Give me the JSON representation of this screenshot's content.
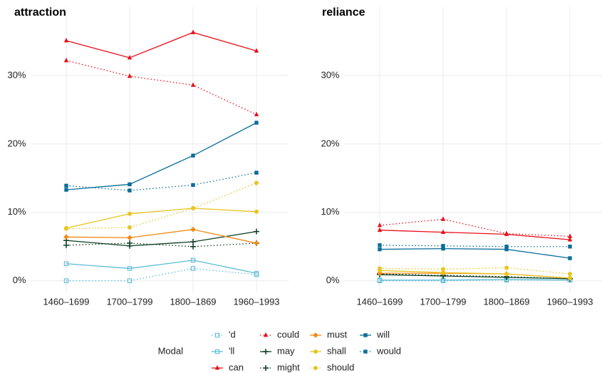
{
  "legend_title": "Modal",
  "chart_data": [
    {
      "type": "line",
      "title": "attraction",
      "categories": [
        "1460–1699",
        "1700–1799",
        "1800–1869",
        "1960–1993"
      ],
      "ylim": [
        -1.7,
        40
      ],
      "yticks": [
        {
          "value": 0,
          "label": "0%"
        },
        {
          "value": 10,
          "label": "10%"
        },
        {
          "value": 20,
          "label": "20%"
        },
        {
          "value": 30,
          "label": "30%"
        }
      ],
      "grid": true,
      "series": [
        {
          "name": "'d",
          "color": "#5bbcd6",
          "dash": true,
          "marker": "open-square",
          "values": [
            0,
            0,
            1.8,
            0.9
          ]
        },
        {
          "name": "'ll",
          "color": "#5bbcd6",
          "dash": false,
          "marker": "open-square",
          "values": [
            2.5,
            1.8,
            3.0,
            1.1
          ]
        },
        {
          "name": "can",
          "color": "#e8101a",
          "dash": false,
          "marker": "triangle",
          "values": [
            35.1,
            32.6,
            36.3,
            33.6
          ]
        },
        {
          "name": "could",
          "color": "#e8101a",
          "dash": true,
          "marker": "triangle",
          "values": [
            32.2,
            29.9,
            28.6,
            24.3
          ]
        },
        {
          "name": "may",
          "color": "#0b3d20",
          "dash": false,
          "marker": "plus",
          "values": [
            5.9,
            5.1,
            5.7,
            7.2
          ]
        },
        {
          "name": "might",
          "color": "#0b3d20",
          "dash": true,
          "marker": "plus",
          "values": [
            5.2,
            5.5,
            5.0,
            5.5
          ]
        },
        {
          "name": "must",
          "color": "#f08a16",
          "dash": false,
          "marker": "diamond",
          "values": [
            6.4,
            6.3,
            7.5,
            5.5
          ]
        },
        {
          "name": "shall",
          "color": "#e8c520",
          "dash": false,
          "marker": "circle",
          "values": [
            7.7,
            9.8,
            10.6,
            10.1
          ]
        },
        {
          "name": "should",
          "color": "#e8c520",
          "dash": true,
          "marker": "circle",
          "values": [
            7.6,
            7.8,
            10.6,
            14.3
          ]
        },
        {
          "name": "will",
          "color": "#0b6e99",
          "dash": false,
          "marker": "square",
          "values": [
            13.3,
            14.1,
            18.3,
            23.1
          ]
        },
        {
          "name": "would",
          "color": "#0b6e99",
          "dash": true,
          "marker": "square",
          "values": [
            13.9,
            13.2,
            14.0,
            15.8
          ]
        }
      ]
    },
    {
      "type": "line",
      "title": "reliance",
      "categories": [
        "1460–1699",
        "1700–1799",
        "1800–1869",
        "1960–1993"
      ],
      "ylim": [
        -1.7,
        40
      ],
      "yticks": [
        {
          "value": 0,
          "label": "0%"
        },
        {
          "value": 10,
          "label": "10%"
        },
        {
          "value": 20,
          "label": "20%"
        },
        {
          "value": 30,
          "label": "30%"
        }
      ],
      "grid": true,
      "series": [
        {
          "name": "'d",
          "color": "#5bbcd6",
          "dash": true,
          "marker": "open-square",
          "values": [
            0.0,
            0.0,
            0.1,
            0.1
          ]
        },
        {
          "name": "'ll",
          "color": "#5bbcd6",
          "dash": false,
          "marker": "open-square",
          "values": [
            0.1,
            0.1,
            0.2,
            0.1
          ]
        },
        {
          "name": "can",
          "color": "#e8101a",
          "dash": false,
          "marker": "triangle",
          "values": [
            7.4,
            7.1,
            6.8,
            6.0
          ]
        },
        {
          "name": "could",
          "color": "#e8101a",
          "dash": true,
          "marker": "triangle",
          "values": [
            8.1,
            9.0,
            6.9,
            6.5
          ]
        },
        {
          "name": "may",
          "color": "#0b3d20",
          "dash": false,
          "marker": "plus",
          "values": [
            0.9,
            0.7,
            0.5,
            0.3
          ]
        },
        {
          "name": "might",
          "color": "#0b3d20",
          "dash": true,
          "marker": "plus",
          "values": [
            1.0,
            0.8,
            0.6,
            0.3
          ]
        },
        {
          "name": "must",
          "color": "#f08a16",
          "dash": false,
          "marker": "diamond",
          "values": [
            1.1,
            1.1,
            1.0,
            0.4
          ]
        },
        {
          "name": "shall",
          "color": "#e8c520",
          "dash": false,
          "marker": "circle",
          "values": [
            1.5,
            1.2,
            1.0,
            0.4
          ]
        },
        {
          "name": "should",
          "color": "#e8c520",
          "dash": true,
          "marker": "circle",
          "values": [
            1.8,
            1.7,
            1.9,
            1.0
          ]
        },
        {
          "name": "will",
          "color": "#0b6e99",
          "dash": false,
          "marker": "square",
          "values": [
            4.6,
            4.7,
            4.6,
            3.3
          ]
        },
        {
          "name": "would",
          "color": "#0b6e99",
          "dash": true,
          "marker": "square",
          "values": [
            5.2,
            5.1,
            5.0,
            5.0
          ]
        }
      ]
    }
  ]
}
